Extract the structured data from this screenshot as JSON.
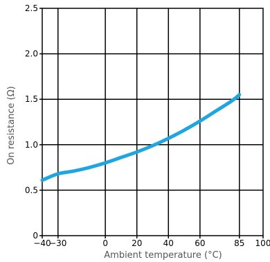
{
  "chart_data": {
    "type": "line",
    "title": "",
    "xlabel": "Ambient temperature (°C)",
    "ylabel": "On resistance (Ω)",
    "xlim": [
      -40,
      100
    ],
    "ylim": [
      0,
      2.5
    ],
    "grid": true,
    "x_ticks": [
      -40,
      -30,
      0,
      20,
      40,
      60,
      85,
      100
    ],
    "x_tick_labels": [
      "−40",
      "−30",
      "0",
      "20",
      "40",
      "60",
      "85",
      "100"
    ],
    "y_ticks": [
      0,
      0.5,
      1.0,
      1.5,
      2.0,
      2.5
    ],
    "y_tick_labels": [
      "0",
      "0.5",
      "1.0",
      "1.5",
      "2.0",
      "2.5"
    ],
    "series": [
      {
        "color": "#1fa6e0",
        "x": [
          -40,
          -30,
          -20,
          -10,
          0,
          10,
          20,
          30,
          40,
          50,
          60,
          70,
          80,
          85
        ],
        "y": [
          0.61,
          0.68,
          0.71,
          0.75,
          0.8,
          0.86,
          0.92,
          0.99,
          1.07,
          1.16,
          1.26,
          1.37,
          1.48,
          1.55
        ]
      }
    ]
  }
}
